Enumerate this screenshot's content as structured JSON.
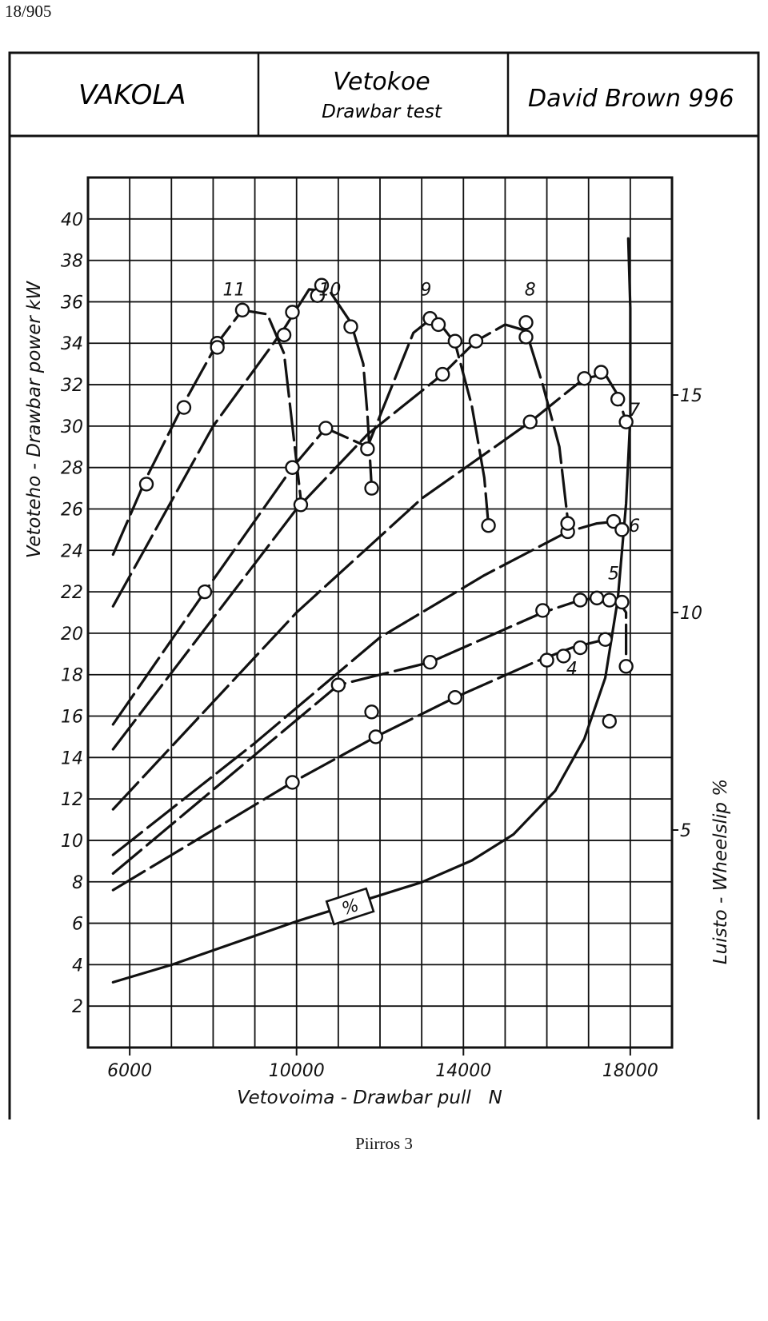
{
  "page": {
    "doc_id": "18/905",
    "caption": "Piirros 3"
  },
  "header": {
    "left": "VAKOLA",
    "center_title": "Vetokoe",
    "center_subtitle": "Drawbar test",
    "right": "David Brown 996"
  },
  "chart_data": {
    "type": "line",
    "xlabel": "Vetovoima - Drawbar pull   N",
    "ylabel": "Vetoteho - Drawbar power  kW",
    "y2label": "Luisto - Wheelslip  %",
    "xlim": [
      5000,
      19000
    ],
    "ylim": [
      0,
      42
    ],
    "y2lim": [
      0,
      20
    ],
    "grid": true,
    "x_ticks": [
      6000,
      10000,
      14000,
      18000
    ],
    "y_ticks": [
      2,
      4,
      6,
      8,
      10,
      12,
      14,
      16,
      18,
      20,
      22,
      24,
      26,
      28,
      30,
      32,
      34,
      36,
      38,
      40
    ],
    "y2_ticks": [
      5,
      10,
      15
    ],
    "series": [
      {
        "name": "11",
        "label_at": [
          8500,
          36.3
        ],
        "line": [
          [
            5600,
            23.8
          ],
          [
            6400,
            27.5
          ],
          [
            7300,
            31.1
          ],
          [
            8100,
            34.0
          ],
          [
            8700,
            35.6
          ],
          [
            9300,
            35.4
          ],
          [
            9700,
            33.5
          ],
          [
            9900,
            30.0
          ],
          [
            10100,
            26.5
          ]
        ],
        "points": [
          [
            6400,
            27.2
          ],
          [
            7300,
            30.9
          ],
          [
            8100,
            34.0
          ],
          [
            8100,
            33.8
          ],
          [
            8700,
            35.6
          ],
          [
            9900,
            28.0
          ],
          [
            10100,
            26.2
          ]
        ]
      },
      {
        "name": "10",
        "label_at": [
          10800,
          36.3
        ],
        "line": [
          [
            5600,
            21.3
          ],
          [
            8000,
            30.0
          ],
          [
            9700,
            34.7
          ],
          [
            10300,
            36.6
          ],
          [
            10800,
            36.5
          ],
          [
            11300,
            35.0
          ],
          [
            11600,
            33.0
          ],
          [
            11700,
            30.5
          ],
          [
            11800,
            27.0
          ]
        ],
        "points": [
          [
            9700,
            34.4
          ],
          [
            9900,
            35.5
          ],
          [
            10500,
            36.3
          ],
          [
            10600,
            36.8
          ],
          [
            11300,
            34.8
          ],
          [
            11800,
            27.0
          ]
        ]
      },
      {
        "name": "9",
        "label_at": [
          13100,
          36.3
        ],
        "line": [
          [
            5600,
            15.6
          ],
          [
            7800,
            22.0
          ],
          [
            9900,
            28.0
          ],
          [
            10700,
            29.9
          ],
          [
            11700,
            29.0
          ],
          [
            12800,
            34.5
          ],
          [
            13300,
            35.3
          ],
          [
            13800,
            34.0
          ],
          [
            14200,
            31.0
          ],
          [
            14500,
            27.5
          ],
          [
            14600,
            25.2
          ]
        ],
        "points": [
          [
            7800,
            22.0
          ],
          [
            9900,
            28.0
          ],
          [
            10700,
            29.9
          ],
          [
            11700,
            28.9
          ],
          [
            13200,
            35.2
          ],
          [
            13400,
            34.9
          ],
          [
            13800,
            34.1
          ],
          [
            14600,
            25.2
          ]
        ]
      },
      {
        "name": "8",
        "label_at": [
          15600,
          36.3
        ],
        "line": [
          [
            5600,
            14.4
          ],
          [
            10000,
            26.0
          ],
          [
            11700,
            29.6
          ],
          [
            13500,
            32.5
          ],
          [
            14300,
            34.1
          ],
          [
            15000,
            34.9
          ],
          [
            15500,
            34.6
          ],
          [
            15900,
            32.0
          ],
          [
            16300,
            29.0
          ],
          [
            16500,
            25.5
          ]
        ],
        "points": [
          [
            13500,
            32.5
          ],
          [
            14300,
            34.1
          ],
          [
            15500,
            35.0
          ],
          [
            15500,
            34.3
          ],
          [
            16500,
            25.3
          ],
          [
            16500,
            24.9
          ]
        ]
      },
      {
        "name": "7",
        "label_at": [
          18100,
          30.5
        ],
        "line": [
          [
            5600,
            11.5
          ],
          [
            10000,
            21.0
          ],
          [
            13000,
            26.5
          ],
          [
            15600,
            30.2
          ],
          [
            16400,
            31.5
          ],
          [
            16900,
            32.3
          ],
          [
            17400,
            32.5
          ],
          [
            17700,
            31.5
          ],
          [
            17900,
            30.2
          ]
        ],
        "points": [
          [
            15600,
            30.2
          ],
          [
            16900,
            32.3
          ],
          [
            17300,
            32.6
          ],
          [
            17700,
            31.3
          ],
          [
            17900,
            30.2
          ]
        ]
      },
      {
        "name": "6",
        "label_at": [
          18100,
          24.9
        ],
        "line": [
          [
            5600,
            9.3
          ],
          [
            9000,
            14.7
          ],
          [
            12000,
            19.8
          ],
          [
            14500,
            22.8
          ],
          [
            16500,
            24.9
          ],
          [
            17200,
            25.3
          ],
          [
            17700,
            25.4
          ],
          [
            17900,
            25.0
          ]
        ],
        "points": [
          [
            16500,
            25.3
          ],
          [
            17600,
            25.4
          ],
          [
            17800,
            25.0
          ]
        ]
      },
      {
        "name": "5",
        "label_at": [
          17600,
          22.6
        ],
        "line": [
          [
            5600,
            8.4
          ],
          [
            11000,
            17.5
          ],
          [
            13200,
            18.6
          ],
          [
            15900,
            21.0
          ],
          [
            16800,
            21.6
          ],
          [
            17200,
            21.7
          ],
          [
            17700,
            21.6
          ],
          [
            17900,
            21.0
          ],
          [
            17900,
            19.0
          ]
        ],
        "points": [
          [
            11000,
            17.5
          ],
          [
            13200,
            18.6
          ],
          [
            15900,
            21.1
          ],
          [
            16800,
            21.6
          ],
          [
            17200,
            21.7
          ],
          [
            17500,
            21.6
          ],
          [
            17800,
            21.5
          ]
        ]
      },
      {
        "name": "4",
        "label_at": [
          16600,
          18.0
        ],
        "line": [
          [
            5600,
            7.6
          ],
          [
            9900,
            12.8
          ],
          [
            11900,
            15.0
          ],
          [
            13800,
            16.9
          ],
          [
            15700,
            18.6
          ],
          [
            16600,
            19.3
          ],
          [
            17400,
            19.7
          ]
        ],
        "points": [
          [
            9900,
            12.8
          ],
          [
            11800,
            16.2
          ],
          [
            11900,
            15.0
          ],
          [
            13800,
            16.9
          ],
          [
            16000,
            18.7
          ],
          [
            16400,
            18.9
          ],
          [
            16800,
            19.3
          ],
          [
            17400,
            19.7
          ],
          [
            17900,
            18.4
          ]
        ]
      },
      {
        "name": "%",
        "axis": "right",
        "label_at": [
          11300,
          6.7
        ],
        "line": [
          [
            5600,
            1.5
          ],
          [
            7000,
            1.9
          ],
          [
            8500,
            2.4
          ],
          [
            10000,
            2.9
          ],
          [
            11500,
            3.35
          ],
          [
            13000,
            3.8
          ],
          [
            14200,
            4.3
          ],
          [
            15200,
            4.9
          ],
          [
            16200,
            5.9
          ],
          [
            16900,
            7.1
          ],
          [
            17400,
            8.5
          ],
          [
            17700,
            10.3
          ],
          [
            17900,
            12.5
          ],
          [
            18000,
            14.5
          ],
          [
            18000,
            17.0
          ],
          [
            17950,
            18.6
          ]
        ],
        "points": [
          [
            17500,
            7.5
          ]
        ]
      }
    ]
  }
}
